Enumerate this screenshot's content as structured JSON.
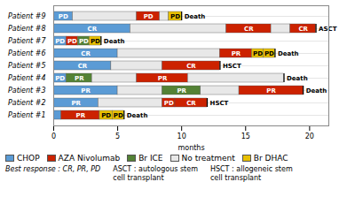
{
  "chart_data": {
    "type": "bar",
    "orientation": "horizontal",
    "stacked": true,
    "categories": [
      "Patient #9",
      "Patient #8",
      "Patient #7",
      "Patient #6",
      "Patient #5",
      "Patient #4",
      "Patient #3",
      "Patient #2",
      "Patient #1"
    ],
    "series": [
      {
        "name": "CHOP",
        "color": "#5B9BD5"
      },
      {
        "name": "AZA Nivolumab",
        "color": "#CC2200"
      },
      {
        "name": "Br ICE",
        "color": "#548235"
      },
      {
        "name": "No treatment",
        "color": "#E8E8E8"
      },
      {
        "name": "Br DHAC",
        "color": "#E8C000"
      }
    ],
    "bars": [
      [
        {
          "series": "CHOP",
          "value": 1.5,
          "label": "PD"
        },
        {
          "series": "No treatment",
          "value": 5.0,
          "label": null
        },
        {
          "series": "AZA Nivolumab",
          "value": 1.8,
          "label": "PD"
        },
        {
          "series": "No treatment",
          "value": 0.7,
          "label": null
        },
        {
          "series": "Br DHAC",
          "value": 1.0,
          "label": "PD"
        }
      ],
      [
        {
          "series": "CHOP",
          "value": 6.0,
          "label": "CR"
        },
        {
          "series": "No treatment",
          "value": 7.5,
          "label": null
        },
        {
          "series": "AZA Nivolumab",
          "value": 3.5,
          "label": "CR"
        },
        {
          "series": "No treatment",
          "value": 1.5,
          "label": null
        },
        {
          "series": "AZA Nivolumab",
          "value": 2.0,
          "label": "CR"
        }
      ],
      [
        {
          "series": "CHOP",
          "value": 1.0,
          "label": "PD"
        },
        {
          "series": "AZA Nivolumab",
          "value": 0.9,
          "label": "PD"
        },
        {
          "series": "Br ICE",
          "value": 0.9,
          "label": "PD"
        },
        {
          "series": "Br DHAC",
          "value": 0.9,
          "label": "PD"
        }
      ],
      [
        {
          "series": "CHOP",
          "value": 5.0,
          "label": "CR"
        },
        {
          "series": "No treatment",
          "value": 8.0,
          "label": null
        },
        {
          "series": "AZA Nivolumab",
          "value": 2.5,
          "label": "PR"
        },
        {
          "series": "Br DHAC",
          "value": 0.9,
          "label": "PD"
        },
        {
          "series": "Br DHAC",
          "value": 0.9,
          "label": "PD"
        }
      ],
      [
        {
          "series": "CHOP",
          "value": 4.5,
          "label": "CR"
        },
        {
          "series": "No treatment",
          "value": 4.0,
          "label": null
        },
        {
          "series": "AZA Nivolumab",
          "value": 4.5,
          "label": "CR"
        }
      ],
      [
        {
          "series": "CHOP",
          "value": 1.0,
          "label": "PD"
        },
        {
          "series": "Br ICE",
          "value": 2.0,
          "label": "PR"
        },
        {
          "series": "No treatment",
          "value": 3.5,
          "label": null
        },
        {
          "series": "AZA Nivolumab",
          "value": 4.0,
          "label": "PR"
        },
        {
          "series": "No treatment",
          "value": 7.5,
          "label": null
        }
      ],
      [
        {
          "series": "CHOP",
          "value": 5.0,
          "label": "PR"
        },
        {
          "series": "No treatment",
          "value": 3.5,
          "label": null
        },
        {
          "series": "Br ICE",
          "value": 3.0,
          "label": "PR"
        },
        {
          "series": "No treatment",
          "value": 3.0,
          "label": null
        },
        {
          "series": "AZA Nivolumab",
          "value": 5.0,
          "label": "PR"
        }
      ],
      [
        {
          "series": "CHOP",
          "value": 3.5,
          "label": "PR"
        },
        {
          "series": "No treatment",
          "value": 5.0,
          "label": null
        },
        {
          "series": "AZA Nivolumab",
          "value": 1.0,
          "label": "PD"
        },
        {
          "series": "AZA Nivolumab",
          "value": 2.5,
          "label": "CR"
        }
      ],
      [
        {
          "series": "CHOP",
          "value": 0.6,
          "label": null
        },
        {
          "series": "AZA Nivolumab",
          "value": 3.0,
          "label": "PR"
        },
        {
          "series": "Br DHAC",
          "value": 1.0,
          "label": "PD"
        },
        {
          "series": "Br DHAC",
          "value": 0.9,
          "label": "PD"
        }
      ]
    ],
    "events": [
      {
        "category": "Patient #9",
        "x": 10.0,
        "label": "Death"
      },
      {
        "category": "Patient #8",
        "x": 20.5,
        "label": "ASCT"
      },
      {
        "category": "Patient #7",
        "x": 3.7,
        "label": "Death"
      },
      {
        "category": "Patient #6",
        "x": 17.3,
        "label": "Death"
      },
      {
        "category": "Patient #5",
        "x": 13.0,
        "label": "HSCT"
      },
      {
        "category": "Patient #4",
        "x": 18.0,
        "label": "Death"
      },
      {
        "category": "Patient #3",
        "x": 19.5,
        "label": "Death"
      },
      {
        "category": "Patient #2",
        "x": 12.0,
        "label": "HSCT"
      },
      {
        "category": "Patient #1",
        "x": 5.5,
        "label": "Death"
      }
    ],
    "xlim": [
      0,
      21.5
    ],
    "xticks": [
      0,
      5,
      10,
      15,
      20
    ],
    "xlabel": "months",
    "grid": true,
    "legend": "bottom",
    "annotations": [
      "Best response : CR, PR, PD",
      "ASCT : autologous stem\ncell transplant",
      "HSCT : allogeneic stem\ncell transplant"
    ]
  }
}
